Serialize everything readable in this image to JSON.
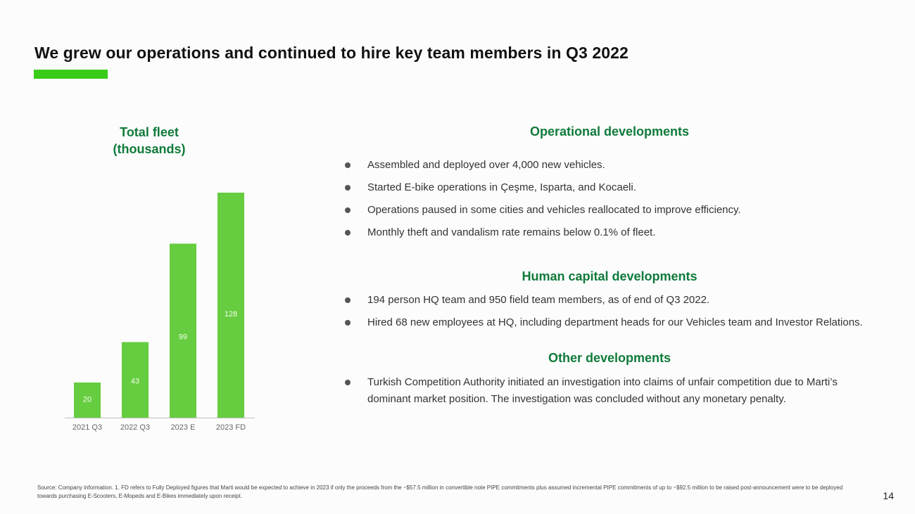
{
  "slide": {
    "title": "We grew our operations and continued to hire key team members in Q3 2022",
    "page_number": "14",
    "footnote": "Source: Company information. 1. FD refers to Fully Deployed figures that Marti would be expected to achieve in 2023 if only the proceeds from the ~$57.5 million in convertible note PIPE commitments plus assumed incremental PIPE commitments of up to ~$92.5 million to be raised post-announcement were to be deployed towards purchasing  E-Scooters, E-Mopeds and E-Bikes immediately upon receipt."
  },
  "colors": {
    "accent": "#38cc18",
    "bar": "#66cc40",
    "heading": "#0f7a3a"
  },
  "chart_data": {
    "type": "bar",
    "title": "Total fleet (thousands)",
    "title_lines": [
      "Total fleet",
      "(thousands)"
    ],
    "categories": [
      "2021 Q3",
      "2022 Q3",
      "2023 E",
      "2023 FD"
    ],
    "values": [
      20,
      43,
      99,
      128
    ],
    "value_labels": [
      "20",
      "43",
      "99",
      "128"
    ],
    "ylim": [
      0,
      130
    ],
    "xlabel": "",
    "ylabel": "",
    "grid": false
  },
  "sections": [
    {
      "title": "Operational developments",
      "bullets": [
        "Assembled and deployed over 4,000 new vehicles.",
        "Started E-bike operations in Çeşme, Isparta, and Kocaeli.",
        "Operations paused in some cities and vehicles reallocated to improve efficiency.",
        "Monthly theft and vandalism rate remains below 0.1% of fleet."
      ]
    },
    {
      "title": "Human capital developments",
      "bullets": [
        "194 person HQ team and 950 field team members, as of end of Q3 2022.",
        "Hired 68 new employees at HQ, including department heads for our Vehicles team and Investor Relations."
      ]
    },
    {
      "title": "Other developments",
      "bullets": [
        "Turkish Competition Authority initiated an investigation into claims of unfair competition due to Marti’s dominant market position. The investigation was concluded without any monetary penalty."
      ]
    }
  ]
}
